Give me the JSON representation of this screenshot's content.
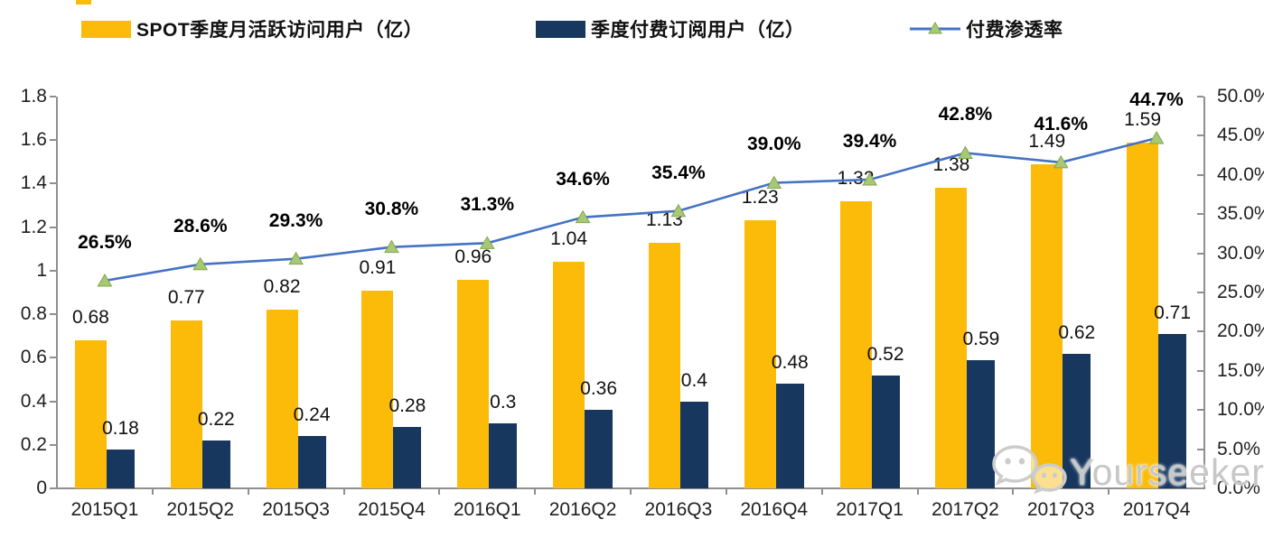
{
  "colors": {
    "mau_bar": "#FBBB08",
    "sub_bar": "#17375E",
    "line": "#4472C4",
    "marker_fill": "#A9C873",
    "marker_edge": "#7FA650",
    "axis": "#8F8F8F",
    "text": "#1F1F1F",
    "watermark": "#C7C7C7"
  },
  "legend": {
    "items": [
      {
        "label": "SPOT季度月活跃访问用户（亿）",
        "swatch": "bar-yellow"
      },
      {
        "label": "季度付费订阅用户（亿）",
        "swatch": "bar-navy"
      },
      {
        "label": "付费渗透率",
        "swatch": "line-marker"
      }
    ]
  },
  "chart_data": {
    "type": "combo-bar-line",
    "categories": [
      "2015Q1",
      "2015Q2",
      "2015Q3",
      "2015Q4",
      "2016Q1",
      "2016Q2",
      "2016Q3",
      "2016Q4",
      "2017Q1",
      "2017Q2",
      "2017Q3",
      "2017Q4"
    ],
    "series": [
      {
        "name": "SPOT季度月活跃访问用户（亿）",
        "type": "bar",
        "axis": "left",
        "color": "#FBBB08",
        "values": [
          0.68,
          0.77,
          0.82,
          0.91,
          0.96,
          1.04,
          1.13,
          1.23,
          1.32,
          1.38,
          1.49,
          1.59
        ],
        "labels": [
          "0.68",
          "0.77",
          "0.82",
          "0.91",
          "0.96",
          "1.04",
          "1.13",
          "1.23",
          "1.32",
          "1.38",
          "1.49",
          "1.59"
        ]
      },
      {
        "name": "季度付费订阅用户（亿）",
        "type": "bar",
        "axis": "left",
        "color": "#17375E",
        "values": [
          0.18,
          0.22,
          0.24,
          0.28,
          0.3,
          0.36,
          0.4,
          0.48,
          0.52,
          0.59,
          0.62,
          0.71
        ],
        "labels": [
          "0.18",
          "0.22",
          "0.24",
          "0.28",
          "0.3",
          "0.36",
          "0.4",
          "0.48",
          "0.52",
          "0.59",
          "0.62",
          "0.71"
        ]
      },
      {
        "name": "付费渗透率",
        "type": "line",
        "axis": "right",
        "color": "#4472C4",
        "marker": "triangle",
        "values": [
          26.5,
          28.6,
          29.3,
          30.8,
          31.3,
          34.6,
          35.4,
          39.0,
          39.4,
          42.8,
          41.6,
          44.7
        ],
        "labels": [
          "26.5%",
          "28.6%",
          "29.3%",
          "30.8%",
          "31.3%",
          "34.6%",
          "35.4%",
          "39.0%",
          "39.4%",
          "42.8%",
          "41.6%",
          "44.7%"
        ]
      }
    ],
    "left_axis": {
      "min": 0,
      "max": 1.8,
      "tick_labels": [
        "1.8",
        "1.6",
        "1.4",
        "1.2",
        "1",
        "0.8",
        "0.6",
        "0.4",
        "0.2",
        "0"
      ]
    },
    "right_axis": {
      "min": 0,
      "max": 50,
      "tick_labels": [
        "50.0%",
        "45.0%",
        "40.0%",
        "35.0%",
        "30.0%",
        "25.0%",
        "20.0%",
        "15.0%",
        "10.0%",
        "5.0%",
        "0.0%"
      ]
    },
    "grid": false,
    "legend_position": "top"
  },
  "watermark": {
    "text": "Yourseeker",
    "icon": "wechat-icon"
  }
}
